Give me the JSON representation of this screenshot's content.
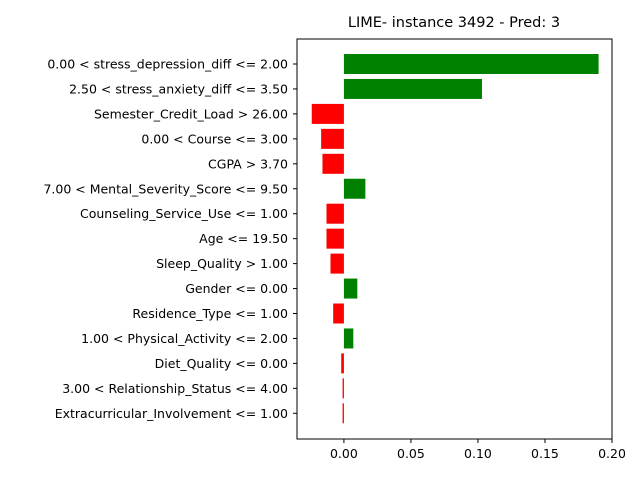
{
  "chart_data": {
    "type": "bar",
    "orientation": "horizontal",
    "title": "LIME- instance 3492 - Pred: 3",
    "xlabel": "",
    "ylabel": "",
    "xlim": [
      -0.035,
      0.2
    ],
    "xticks": [
      0.0,
      0.05,
      0.1,
      0.15,
      0.2
    ],
    "xtick_labels": [
      "0.00",
      "0.05",
      "0.10",
      "0.15",
      "0.20"
    ],
    "grid": false,
    "colors": {
      "positive": "#008000",
      "negative": "#ff0000"
    },
    "categories": [
      "0.00 < stress_depression_diff <= 2.00",
      "2.50 < stress_anxiety_diff <= 3.50",
      "Semester_Credit_Load > 26.00",
      "0.00 < Course <= 3.00",
      "CGPA > 3.70",
      "7.00 < Mental_Severity_Score <= 9.50",
      "Counseling_Service_Use <= 1.00",
      "Age <= 19.50",
      "Sleep_Quality > 1.00",
      "Gender <= 0.00",
      "Residence_Type <= 1.00",
      "1.00 < Physical_Activity <= 2.00",
      "Diet_Quality <= 0.00",
      "3.00 < Relationship_Status <= 4.00",
      "Extracurricular_Involvement <= 1.00"
    ],
    "values": [
      0.19,
      0.103,
      -0.024,
      -0.017,
      -0.016,
      0.016,
      -0.013,
      -0.013,
      -0.01,
      0.01,
      -0.008,
      0.007,
      -0.002,
      -0.001,
      -0.001
    ]
  }
}
